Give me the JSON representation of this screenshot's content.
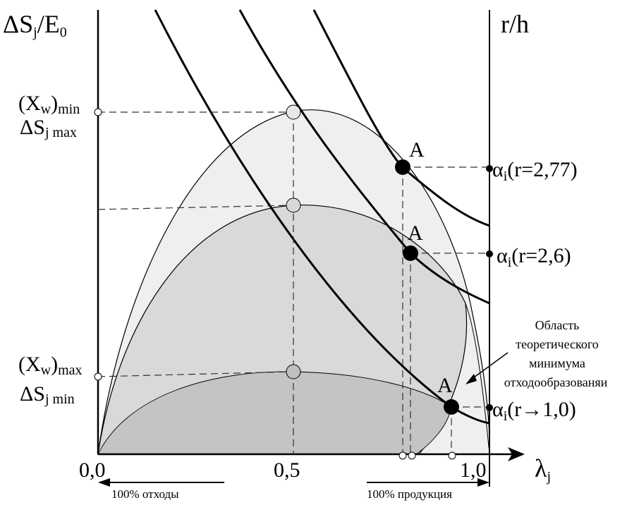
{
  "axes": {
    "y_left_label": "ΔS",
    "y_left_label_sub": "j",
    "y_left_label_tail": "/E",
    "y_left_label_sub2": "0",
    "y_right_label": "r/h",
    "x_label": "λ",
    "x_label_sub": "j",
    "x_ticks": [
      "0,0",
      "0,5",
      "1,0"
    ]
  },
  "left_labels": {
    "xw_min": "(X",
    "xw_min_sub": "w",
    "xw_min_tail": ")",
    "xw_min_subtail": "min",
    "ds_max": "ΔS",
    "ds_max_sub": "j max",
    "xw_max": "(X",
    "xw_max_sub": "w",
    "xw_max_tail": ")",
    "xw_max_subtail": "max",
    "ds_min": "ΔS",
    "ds_min_sub": "j min"
  },
  "points": {
    "a1": "A",
    "a2": "A",
    "a3": "A"
  },
  "alpha_labels": {
    "alpha": "α",
    "alpha_sub": "i",
    "r1": "(r=2,77)",
    "r2": "(r=2,6)",
    "r3": "(r→1,0)"
  },
  "annotation": {
    "line1": "Область",
    "line2": "теоретического",
    "line3": "минимума",
    "line4": "отходообразованяи"
  },
  "bottom_arrows": {
    "waste": "100% отходы",
    "product": "100% продукция"
  },
  "colors": {
    "region_outer": "#efefef",
    "region_mid": "#d9d9d9",
    "region_inner": "#c4c4c4",
    "ink": "#000000",
    "marker_open": "#d8d8d8"
  }
}
